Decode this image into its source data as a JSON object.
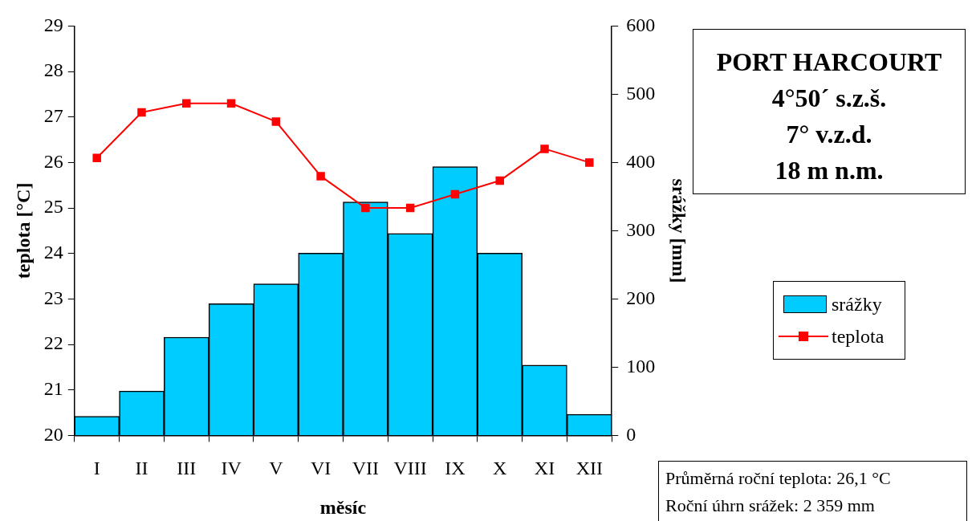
{
  "chart_data": {
    "type": "bar",
    "title": "PORT HARCOURT",
    "subtitle": "4°50´ s.z.š.\n7° v.z.d.\n18 m n.m.",
    "xlabel": "měsíc",
    "ylabel": "teplota [°C]",
    "y2label": "srážky [mm]",
    "annotations": [
      "Průměrná roční teplota: 26,1 °C",
      "Roční úhrn srážek: 2 359 mm"
    ],
    "categories": [
      "I",
      "II",
      "III",
      "IV",
      "V",
      "VI",
      "VII",
      "VIII",
      "IX",
      "X",
      "XI",
      "XII"
    ],
    "series": [
      {
        "name": "srážky",
        "axis": "y2",
        "color": "#00ccff",
        "values": [
          28,
          65,
          144,
          193,
          222,
          267,
          342,
          296,
          394,
          267,
          103,
          31
        ]
      },
      {
        "name": "teplota",
        "type": "line",
        "axis": "y",
        "color": "#ff0000",
        "values": [
          26.1,
          27.1,
          27.3,
          27.3,
          26.9,
          25.7,
          25.0,
          25.0,
          25.3,
          25.6,
          26.3,
          26.0
        ]
      }
    ],
    "ylim": [
      20,
      29
    ],
    "yticks": [
      20,
      21,
      22,
      23,
      24,
      25,
      26,
      27,
      28,
      29
    ],
    "y2lim": [
      0,
      600
    ],
    "y2ticks": [
      0,
      100,
      200,
      300,
      400,
      500,
      600
    ],
    "legend": "right",
    "marker": "square",
    "line_style": "solid"
  }
}
